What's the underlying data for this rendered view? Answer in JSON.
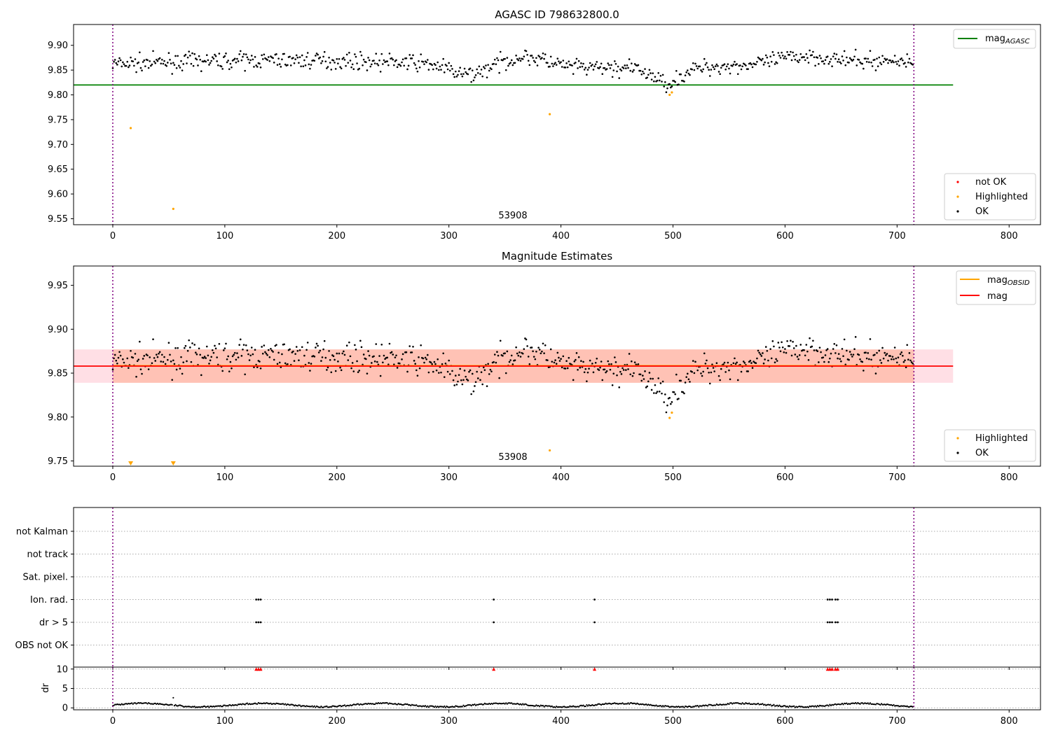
{
  "figure": {
    "background": "#ffffff"
  },
  "chart_data": [
    {
      "type": "scatter",
      "title": "AGASC ID 798632800.0",
      "xlim": [
        -35,
        828
      ],
      "ylim": [
        9.538,
        9.942
      ],
      "xticks": [
        0,
        100,
        200,
        300,
        400,
        500,
        600,
        700,
        800
      ],
      "yticks": [
        9.55,
        9.6,
        9.65,
        9.7,
        9.75,
        9.8,
        9.85,
        9.9
      ],
      "xlabel": "",
      "ylabel": "",
      "vlines": [
        0,
        715
      ],
      "vline_color": "#800080",
      "annotation": {
        "text": "53908",
        "x": 357,
        "y": 9.547
      },
      "hlines": [
        {
          "name": "mag_AGASC",
          "y": 9.82,
          "x0": -35,
          "x1": 750,
          "color": "#008000"
        }
      ],
      "series": [
        {
          "name": "not OK",
          "color": "#ff0000",
          "points": []
        },
        {
          "name": "Highlighted",
          "color": "#ffa500",
          "points": [
            [
              16,
              9.733
            ],
            [
              54,
              9.57
            ],
            [
              390,
              9.761
            ],
            [
              497,
              9.8
            ],
            [
              499,
              9.805
            ]
          ]
        },
        {
          "name": "OK",
          "color": "#000000",
          "description": "about 700 observations spread from x=0 to 715, mag roughly 9.81 to 9.91 with slow wander"
        }
      ],
      "legends": [
        {
          "placement": "upper right",
          "entries": [
            {
              "label": "mag",
              "sub": "AGASC",
              "kind": "line",
              "color": "#008000"
            }
          ]
        },
        {
          "placement": "lower right",
          "entries": [
            {
              "label": "not OK",
              "kind": "dot",
              "color": "#ff0000"
            },
            {
              "label": "Highlighted",
              "kind": "dot",
              "color": "#ffa500"
            },
            {
              "label": "OK",
              "kind": "dot",
              "color": "#000000"
            }
          ]
        }
      ]
    },
    {
      "type": "scatter",
      "title": "Magnitude Estimates",
      "xlim": [
        -35,
        828
      ],
      "ylim": [
        9.744,
        9.972
      ],
      "xticks": [
        0,
        100,
        200,
        300,
        400,
        500,
        600,
        700,
        800
      ],
      "yticks": [
        9.75,
        9.8,
        9.85,
        9.9,
        9.95
      ],
      "xlabel": "",
      "ylabel": "",
      "vlines": [
        0,
        715
      ],
      "vline_color": "#800080",
      "annotation": {
        "text": "53908",
        "x": 357,
        "y": 9.753
      },
      "hlines": [
        {
          "name": "mag_OBSID",
          "y": 9.8585,
          "x0": 0,
          "x1": 715,
          "color": "#ffa500"
        },
        {
          "name": "mag",
          "y": 9.858,
          "x0": -35,
          "x1": 750,
          "color": "#ff0000"
        }
      ],
      "bands": [
        {
          "y0": 9.839,
          "y1": 9.877,
          "x0": -35,
          "x1": 750,
          "color": "#ffc0cb"
        },
        {
          "y0": 9.839,
          "y1": 9.877,
          "x0": 0,
          "x1": 715,
          "color": "#ffa07a"
        }
      ],
      "series": [
        {
          "name": "Highlighted",
          "color": "#ffa500",
          "points": [
            [
              390,
              9.762
            ],
            [
              497,
              9.799
            ],
            [
              499,
              9.805
            ]
          ],
          "off_axis_markers": [
            16,
            54
          ]
        },
        {
          "name": "OK",
          "color": "#000000",
          "description": "same observations as upper panel"
        }
      ],
      "legends": [
        {
          "placement": "upper right",
          "entries": [
            {
              "label": "mag",
              "sub": "OBSID",
              "kind": "line",
              "color": "#ffa500"
            },
            {
              "label": "mag",
              "kind": "line",
              "color": "#ff0000"
            }
          ]
        },
        {
          "placement": "lower right",
          "entries": [
            {
              "label": "Highlighted",
              "kind": "dot",
              "color": "#ffa500"
            },
            {
              "label": "OK",
              "kind": "dot",
              "color": "#000000"
            }
          ]
        }
      ]
    },
    {
      "type": "scatter",
      "title": "",
      "xlim": [
        -35,
        828
      ],
      "categories": [
        "not Kalman",
        "not track",
        "Sat. pixel.",
        "Ion. rad.",
        "dr > 5",
        "OBS not OK"
      ],
      "flag_marks": {
        "Ion. rad.": [
          128,
          130,
          132,
          340,
          430,
          638,
          640,
          642,
          645,
          647
        ],
        "dr > 5": [
          128,
          130,
          132,
          340,
          430,
          638,
          640,
          642,
          645,
          647
        ]
      },
      "vlines": [
        0,
        715
      ],
      "vline_color": "#800080"
    },
    {
      "type": "scatter",
      "title": "",
      "xlim": [
        -35,
        828
      ],
      "ylim": [
        -0.5,
        10.5
      ],
      "xticks": [
        0,
        100,
        200,
        300,
        400,
        500,
        600,
        700,
        800
      ],
      "yticks": [
        0,
        5,
        10
      ],
      "xlabel": "",
      "ylabel": "dr",
      "vlines": [
        0,
        715
      ],
      "vline_color": "#800080",
      "clipped_markers": {
        "color": "#ff0000",
        "x": [
          128,
          130,
          132,
          340,
          430,
          638,
          640,
          642,
          645,
          647
        ]
      },
      "series": [
        {
          "name": "dr",
          "color": "#000000",
          "description": "small offsets between 0 and 1.5 across x=0 to 715, one outlier near x=54 at 2.6"
        }
      ]
    }
  ]
}
